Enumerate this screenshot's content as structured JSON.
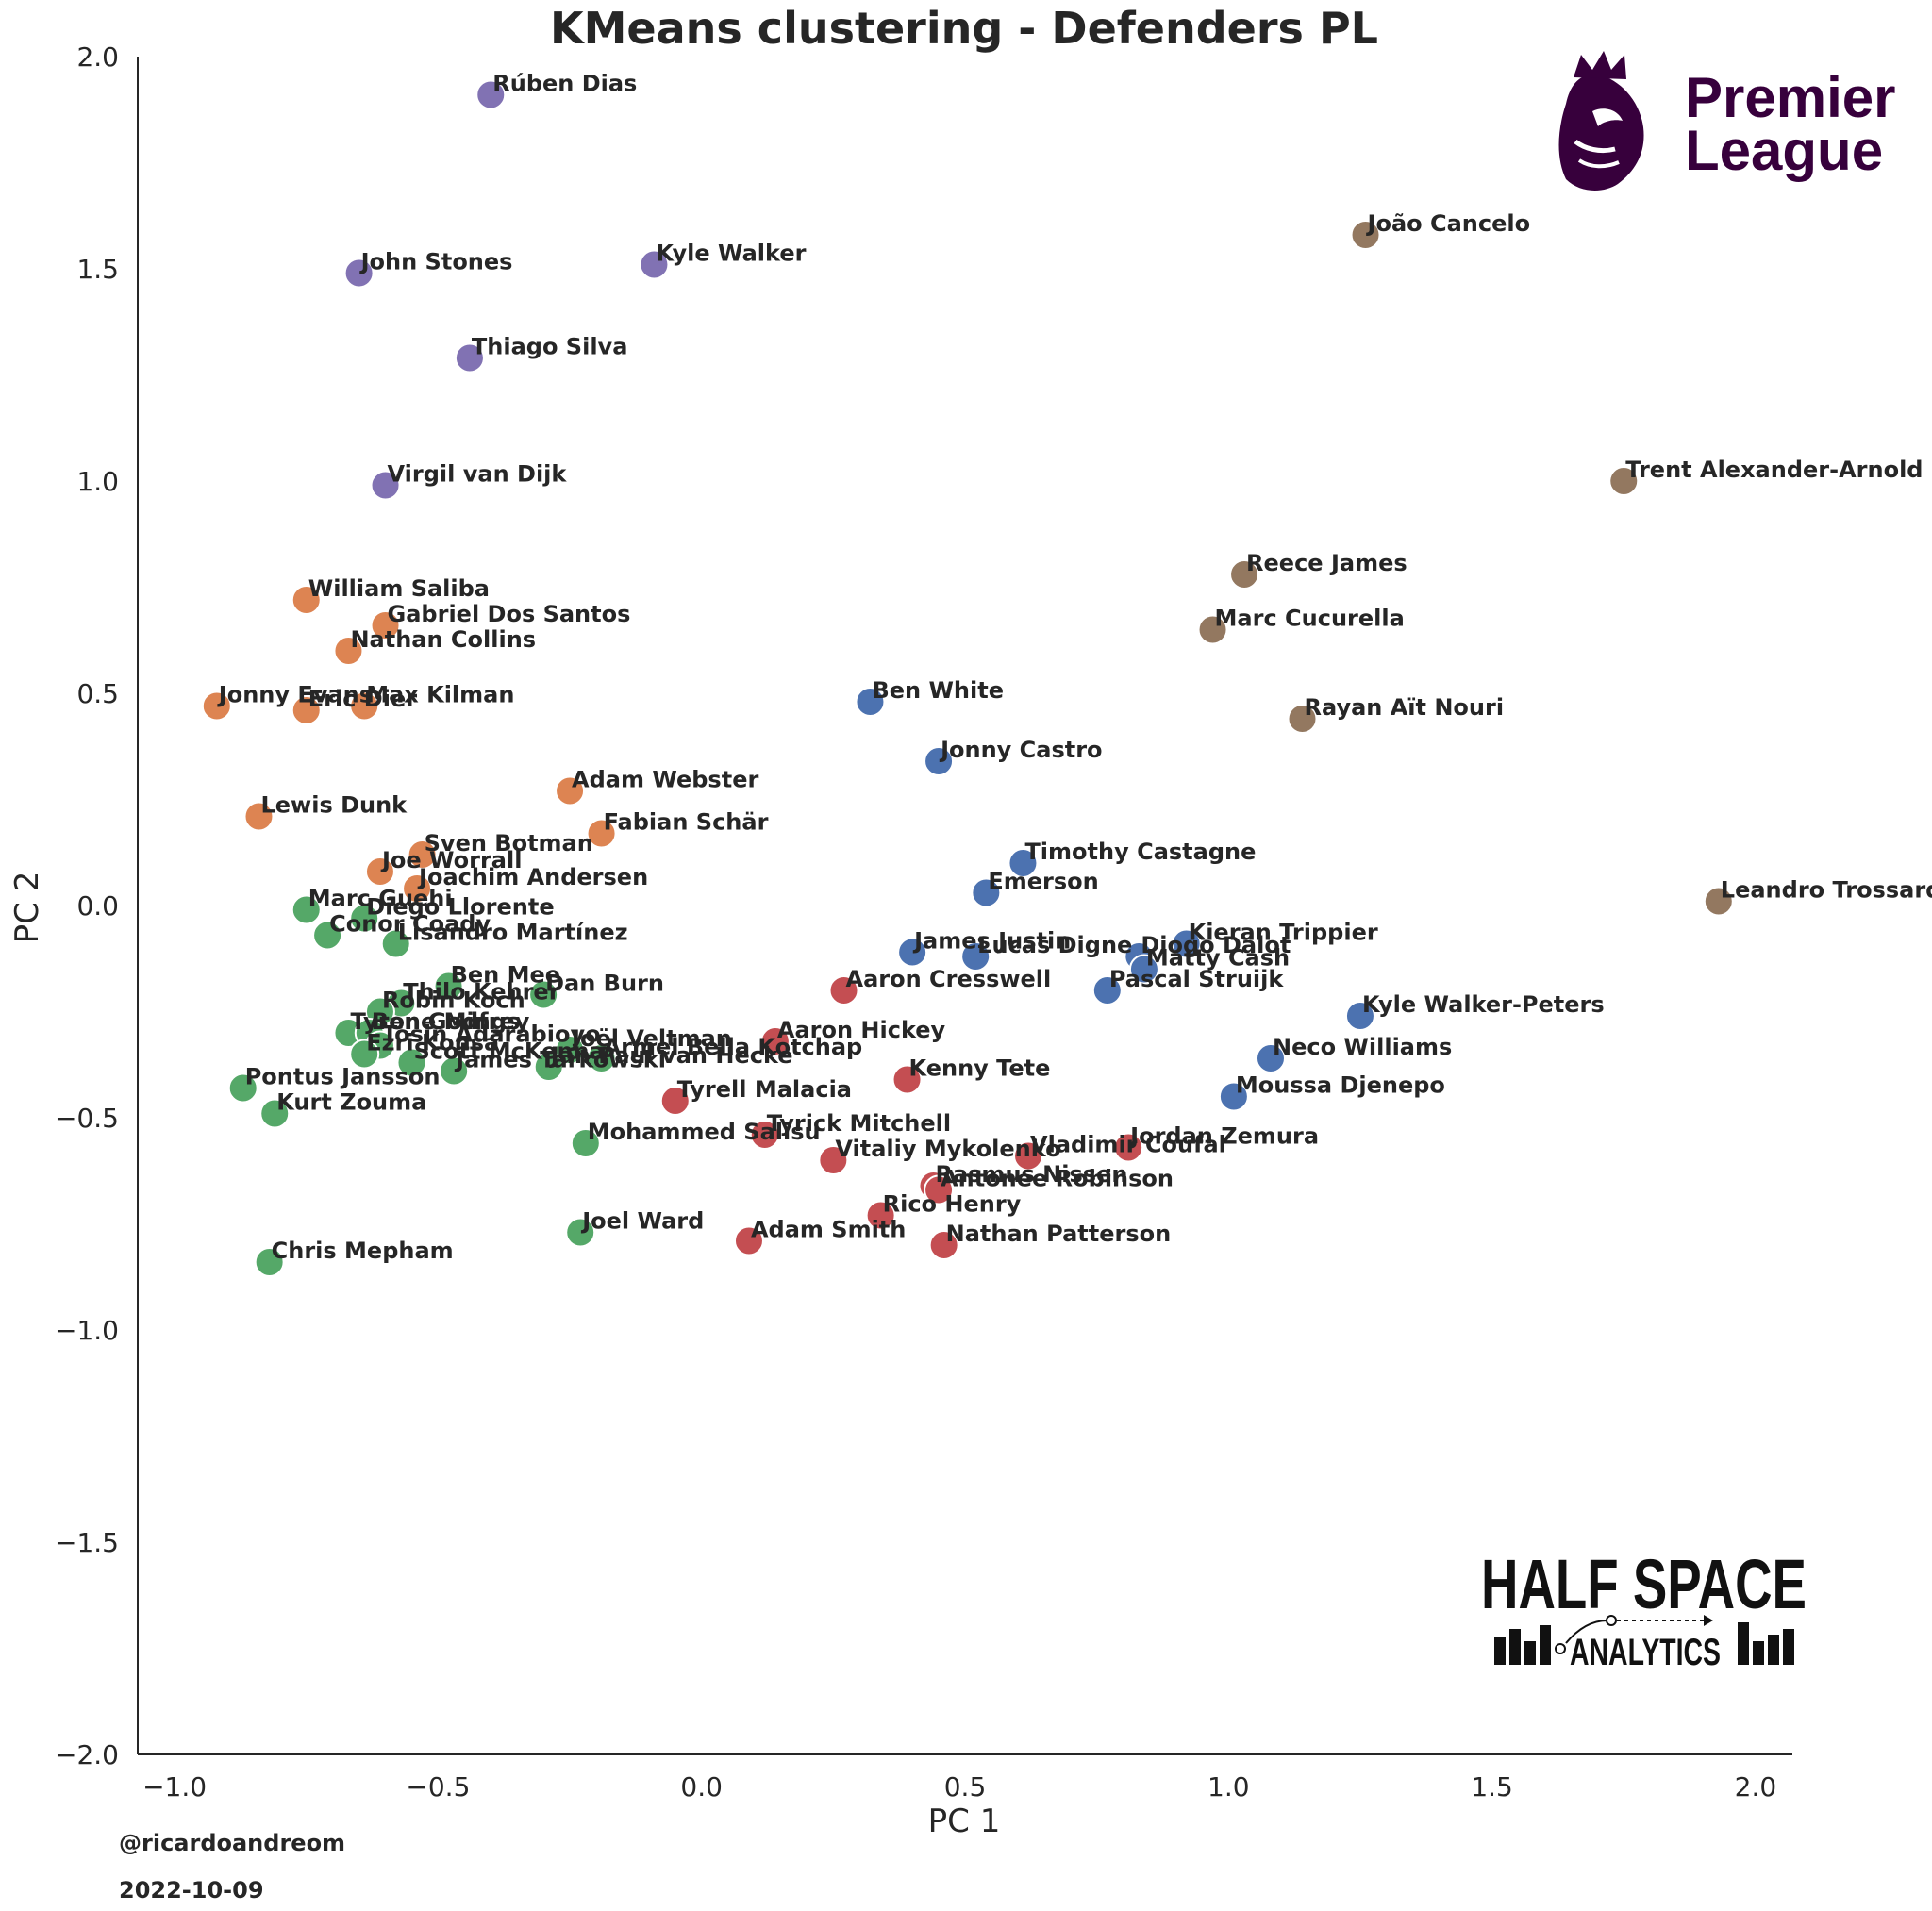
{
  "chart_data": {
    "type": "scatter",
    "title": "KMeans clustering - Defenders PL",
    "xlabel": "PC 1",
    "ylabel": "PC 2",
    "xlim": [
      -1.07,
      2.07
    ],
    "ylim": [
      -2.0,
      2.0
    ],
    "xticks": [
      -1.0,
      -0.5,
      0.0,
      0.5,
      1.0,
      1.5,
      2.0
    ],
    "yticks": [
      -2.0,
      -1.5,
      -1.0,
      -0.5,
      0.0,
      0.5,
      1.0,
      1.5,
      2.0
    ],
    "xtick_labels": [
      "−1.0",
      "−0.5",
      "0.0",
      "0.5",
      "1.0",
      "1.5",
      "2.0"
    ],
    "ytick_labels": [
      "−2.0",
      "−1.5",
      "−1.0",
      "−0.5",
      "0.0",
      "0.5",
      "1.0",
      "1.5",
      "2.0"
    ],
    "grid": false,
    "legend": false,
    "clusters": [
      {
        "color": "#8172b3",
        "points": [
          {
            "name": "Rúben Dias",
            "x": -0.4,
            "y": 1.91
          },
          {
            "name": "John Stones",
            "x": -0.65,
            "y": 1.49
          },
          {
            "name": "Kyle Walker",
            "x": -0.09,
            "y": 1.51
          },
          {
            "name": "Thiago Silva",
            "x": -0.44,
            "y": 1.29
          },
          {
            "name": "Virgil van Dijk",
            "x": -0.6,
            "y": 0.99
          }
        ]
      },
      {
        "color": "#937860",
        "points": [
          {
            "name": "João Cancelo",
            "x": 1.26,
            "y": 1.58
          },
          {
            "name": "Trent Alexander-Arnold",
            "x": 1.75,
            "y": 1.0
          },
          {
            "name": "Reece James",
            "x": 1.03,
            "y": 0.78
          },
          {
            "name": "Marc Cucurella",
            "x": 0.97,
            "y": 0.65
          },
          {
            "name": "Rayan Aït Nouri",
            "x": 1.14,
            "y": 0.44
          },
          {
            "name": "Leandro Trossard",
            "x": 1.93,
            "y": 0.01
          }
        ]
      },
      {
        "color": "#dd8452",
        "points": [
          {
            "name": "William Saliba",
            "x": -0.75,
            "y": 0.72
          },
          {
            "name": "Gabriel Dos Santos",
            "x": -0.6,
            "y": 0.66
          },
          {
            "name": "Nathan Collins",
            "x": -0.67,
            "y": 0.6
          },
          {
            "name": "Jonny Evans",
            "x": -0.92,
            "y": 0.47
          },
          {
            "name": "Eric Dier",
            "x": -0.75,
            "y": 0.46
          },
          {
            "name": "Max Kilman",
            "x": -0.64,
            "y": 0.47
          },
          {
            "name": "Adam Webster",
            "x": -0.25,
            "y": 0.27
          },
          {
            "name": "Lewis Dunk",
            "x": -0.84,
            "y": 0.21
          },
          {
            "name": "Fabian Schär",
            "x": -0.19,
            "y": 0.17
          },
          {
            "name": "Sven Botman",
            "x": -0.53,
            "y": 0.12
          },
          {
            "name": "Joe Worrall",
            "x": -0.61,
            "y": 0.08
          },
          {
            "name": "Joachim Andersen",
            "x": -0.54,
            "y": 0.04
          }
        ]
      },
      {
        "color": "#4c72b0",
        "points": [
          {
            "name": "Ben White",
            "x": 0.32,
            "y": 0.48
          },
          {
            "name": "Jonny Castro",
            "x": 0.45,
            "y": 0.34
          },
          {
            "name": "Timothy Castagne",
            "x": 0.61,
            "y": 0.1
          },
          {
            "name": "Emerson",
            "x": 0.54,
            "y": 0.03
          },
          {
            "name": "James Justin",
            "x": 0.4,
            "y": -0.11
          },
          {
            "name": "Lucas Digne",
            "x": 0.52,
            "y": -0.12
          },
          {
            "name": "Kieran Trippier",
            "x": 0.92,
            "y": -0.09
          },
          {
            "name": "Diogo Dalot",
            "x": 0.83,
            "y": -0.12
          },
          {
            "name": "Matty Cash",
            "x": 0.84,
            "y": -0.15
          },
          {
            "name": "Pascal Struijk",
            "x": 0.77,
            "y": -0.2
          },
          {
            "name": "Kyle Walker-Peters",
            "x": 1.25,
            "y": -0.26
          },
          {
            "name": "Neco Williams",
            "x": 1.08,
            "y": -0.36
          },
          {
            "name": "Moussa Djenepo",
            "x": 1.01,
            "y": -0.45
          }
        ]
      },
      {
        "color": "#c44e52",
        "points": [
          {
            "name": "Aaron Cresswell",
            "x": 0.27,
            "y": -0.2
          },
          {
            "name": "Aaron Hickey",
            "x": 0.14,
            "y": -0.32
          },
          {
            "name": "Kenny Tete",
            "x": 0.39,
            "y": -0.41
          },
          {
            "name": "Tyrell Malacia",
            "x": -0.05,
            "y": -0.46
          },
          {
            "name": "Tyrick Mitchell",
            "x": 0.12,
            "y": -0.54
          },
          {
            "name": "Vitaliy Mykolenko",
            "x": 0.25,
            "y": -0.6
          },
          {
            "name": "Vladimir Coufal",
            "x": 0.62,
            "y": -0.59
          },
          {
            "name": "Jordan Zemura",
            "x": 0.81,
            "y": -0.57
          },
          {
            "name": "Rasmus Nissen",
            "x": 0.44,
            "y": -0.66
          },
          {
            "name": "Antonee Robinson",
            "x": 0.45,
            "y": -0.67
          },
          {
            "name": "Rico Henry",
            "x": 0.34,
            "y": -0.73
          },
          {
            "name": "Adam Smith",
            "x": 0.09,
            "y": -0.79
          },
          {
            "name": "Nathan Patterson",
            "x": 0.46,
            "y": -0.8
          }
        ]
      },
      {
        "color": "#55a868",
        "points": [
          {
            "name": "Marc Guehi",
            "x": -0.75,
            "y": -0.01
          },
          {
            "name": "Diego Llorente",
            "x": -0.64,
            "y": -0.03
          },
          {
            "name": "Conor Coady",
            "x": -0.71,
            "y": -0.07
          },
          {
            "name": "Lisandro Martínez",
            "x": -0.58,
            "y": -0.09
          },
          {
            "name": "Ben Mee",
            "x": -0.48,
            "y": -0.19
          },
          {
            "name": "Dan Burn",
            "x": -0.3,
            "y": -0.21
          },
          {
            "name": "Thilo Kehrer",
            "x": -0.57,
            "y": -0.23
          },
          {
            "name": "Robin Koch",
            "x": -0.61,
            "y": -0.25
          },
          {
            "name": "Tyrone Mings",
            "x": -0.67,
            "y": -0.3
          },
          {
            "name": "Ben Godfrey",
            "x": -0.63,
            "y": -0.3
          },
          {
            "name": "Tosin Adarabioyo",
            "x": -0.61,
            "y": -0.33
          },
          {
            "name": "Ezri Konsa",
            "x": -0.64,
            "y": -0.35
          },
          {
            "name": "Joël Veltman",
            "x": -0.25,
            "y": -0.34
          },
          {
            "name": "Armel Bella Kotchap",
            "x": -0.19,
            "y": -0.36
          },
          {
            "name": "Scott McKenna",
            "x": -0.55,
            "y": -0.37
          },
          {
            "name": "Jan Paul van Hecke",
            "x": -0.29,
            "y": -0.38
          },
          {
            "name": "James Tarkowski",
            "x": -0.47,
            "y": -0.39
          },
          {
            "name": "Pontus Jansson",
            "x": -0.87,
            "y": -0.43
          },
          {
            "name": "Kurt Zouma",
            "x": -0.81,
            "y": -0.49
          },
          {
            "name": "Mohammed Salisu",
            "x": -0.22,
            "y": -0.56
          },
          {
            "name": "Joel Ward",
            "x": -0.23,
            "y": -0.77
          },
          {
            "name": "Chris Mepham",
            "x": -0.82,
            "y": -0.84
          }
        ]
      }
    ]
  },
  "logos": {
    "premier_league": {
      "line1": "Premier",
      "line2": "League",
      "color": "#37003c"
    },
    "half_space": {
      "line1": "HALF SPACE",
      "line2": "ANALYTICS"
    }
  },
  "footer": {
    "handle": "@ricardoandreom",
    "date": "2022-10-09"
  }
}
